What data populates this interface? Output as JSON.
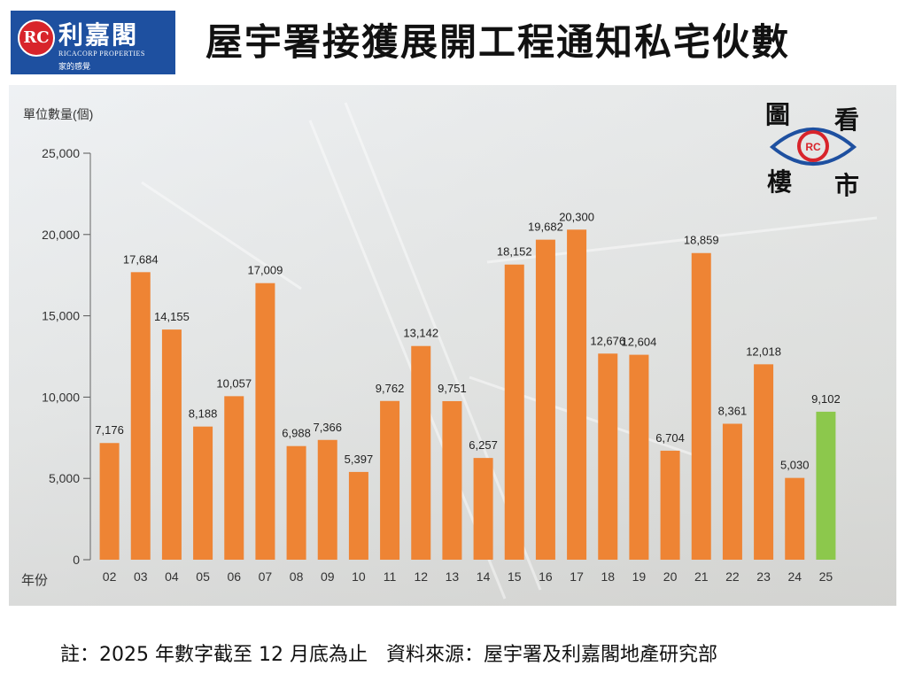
{
  "header": {
    "logo_mark": "RC",
    "logo_name": "利嘉閣",
    "logo_en": "RICACORP PROPERTIES",
    "logo_tag": "家的感覺",
    "title": "屋宇署接獲展開工程通知私宅伙數"
  },
  "badge": {
    "chars": [
      "圖",
      "看",
      "樓",
      "市"
    ],
    "mark": "RC"
  },
  "footer": {
    "note": "註：2025 年數字截至 12 月底為止",
    "source": "資料來源：屋宇署及利嘉閣地產研究部"
  },
  "colors": {
    "bar": "#ee8434",
    "highlight": "#8cc84c",
    "brand": "#1e50a0",
    "logo_red": "#d8242b"
  },
  "chart_data": {
    "type": "bar",
    "ylabel": "單位數量(個)",
    "xlabel": "年份",
    "ylim": [
      0,
      25000
    ],
    "yticks": [
      "0",
      "5,000",
      "10,000",
      "15,000",
      "20,000",
      "25,000"
    ],
    "categories": [
      "02",
      "03",
      "04",
      "05",
      "06",
      "07",
      "08",
      "09",
      "10",
      "11",
      "12",
      "13",
      "14",
      "15",
      "16",
      "17",
      "18",
      "19",
      "20",
      "21",
      "22",
      "23",
      "24",
      "25"
    ],
    "values": [
      7176,
      17684,
      14155,
      8188,
      10057,
      17009,
      6988,
      7366,
      5397,
      9762,
      13142,
      9751,
      6257,
      18152,
      19682,
      20300,
      12676,
      12604,
      6704,
      18859,
      8361,
      12018,
      5030,
      9102
    ],
    "labels": [
      "7,176",
      "17,684",
      "14,155",
      "8,188",
      "10,057",
      "17,009",
      "6,988",
      "7,366",
      "5,397",
      "9,762",
      "13,142",
      "9,751",
      "6,257",
      "18,152",
      "19,682",
      "20,300",
      "12,676",
      "12,604",
      "6,704",
      "18,859",
      "8,361",
      "12,018",
      "5,030",
      "9,102"
    ],
    "highlight_category": "25",
    "grid": false,
    "legend": "none"
  }
}
